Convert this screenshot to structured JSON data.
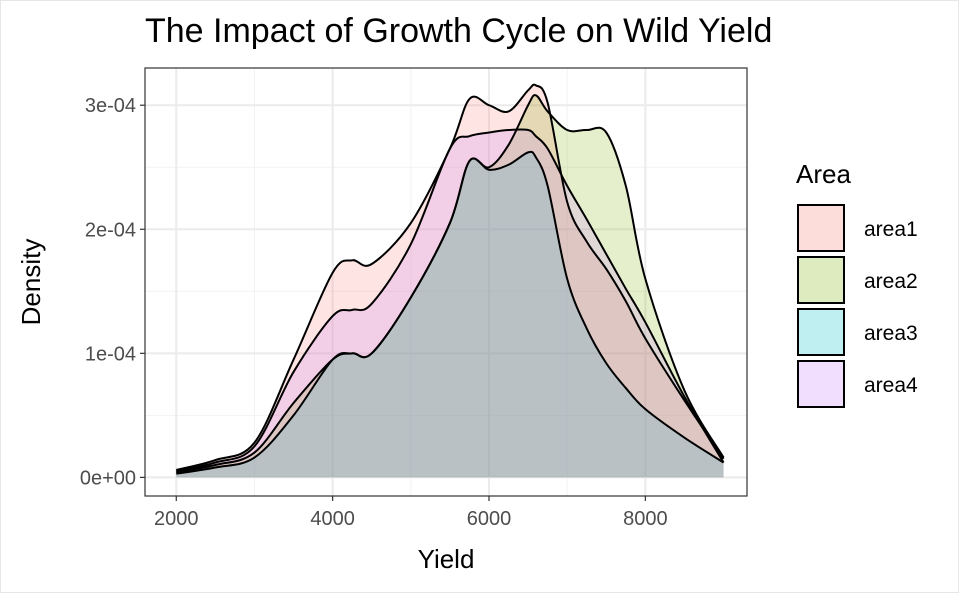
{
  "chart_data": {
    "type": "area",
    "title": "The Impact of Growth Cycle on Wild Yield",
    "xlabel": "Yield",
    "ylabel": "Density",
    "xlim": [
      1600,
      9300
    ],
    "ylim": [
      -1.5e-05,
      0.00033
    ],
    "x_ticks": [
      2000,
      4000,
      6000,
      8000
    ],
    "x_tick_labels": [
      "2000",
      "4000",
      "6000",
      "8000"
    ],
    "y_ticks": [
      0,
      0.0001,
      0.0002,
      0.0003
    ],
    "y_tick_labels": [
      "0e+00",
      "1e-04",
      "2e-04",
      "3e-04"
    ],
    "grid": true,
    "legend": {
      "title": "Area",
      "placement": "right"
    },
    "x": [
      2000,
      2500,
      3000,
      3500,
      4000,
      4250,
      4500,
      5000,
      5500,
      5750,
      6000,
      6250,
      6500,
      6600,
      6750,
      7000,
      7250,
      7500,
      7750,
      8000,
      8500,
      9000
    ],
    "series": [
      {
        "name": "area1",
        "fill": "#f8766d",
        "values": [
          6e-06,
          1.4e-05,
          2.8e-05,
          9.5e-05,
          0.000165,
          0.000175,
          0.000172,
          0.000205,
          0.000265,
          0.000305,
          0.0003,
          0.000295,
          0.000312,
          0.000316,
          0.000302,
          0.000222,
          0.00019,
          0.000168,
          0.000142,
          0.000112,
          6.2e-05,
          1.5e-05
        ]
      },
      {
        "name": "area2",
        "fill": "#7cae00",
        "values": [
          4e-06,
          1e-05,
          2e-05,
          6e-05,
          9.5e-05,
          0.0001,
          0.0001,
          0.000145,
          0.000205,
          0.000255,
          0.00025,
          0.000268,
          0.0003,
          0.000308,
          0.000295,
          0.00028,
          0.00028,
          0.000278,
          0.000235,
          0.00016,
          7e-05,
          1.6e-05
        ]
      },
      {
        "name": "area3",
        "fill": "#00bfc4",
        "values": [
          3e-06,
          8e-06,
          1.6e-05,
          5e-05,
          9.5e-05,
          0.0001,
          0.0001,
          0.000145,
          0.000205,
          0.000255,
          0.000248,
          0.000252,
          0.000262,
          0.000258,
          0.000235,
          0.00016,
          0.00012,
          9.2e-05,
          7.2e-05,
          5.5e-05,
          3.2e-05,
          1.2e-05
        ]
      },
      {
        "name": "area4",
        "fill": "#c77cff",
        "values": [
          5e-06,
          1.2e-05,
          2.5e-05,
          8.5e-05,
          0.00013,
          0.000135,
          0.00014,
          0.000188,
          0.000265,
          0.000275,
          0.000278,
          0.00028,
          0.00028,
          0.000275,
          0.000265,
          0.000235,
          0.000208,
          0.00018,
          0.000152,
          0.000125,
          6.5e-05,
          1.2e-05
        ]
      }
    ]
  }
}
